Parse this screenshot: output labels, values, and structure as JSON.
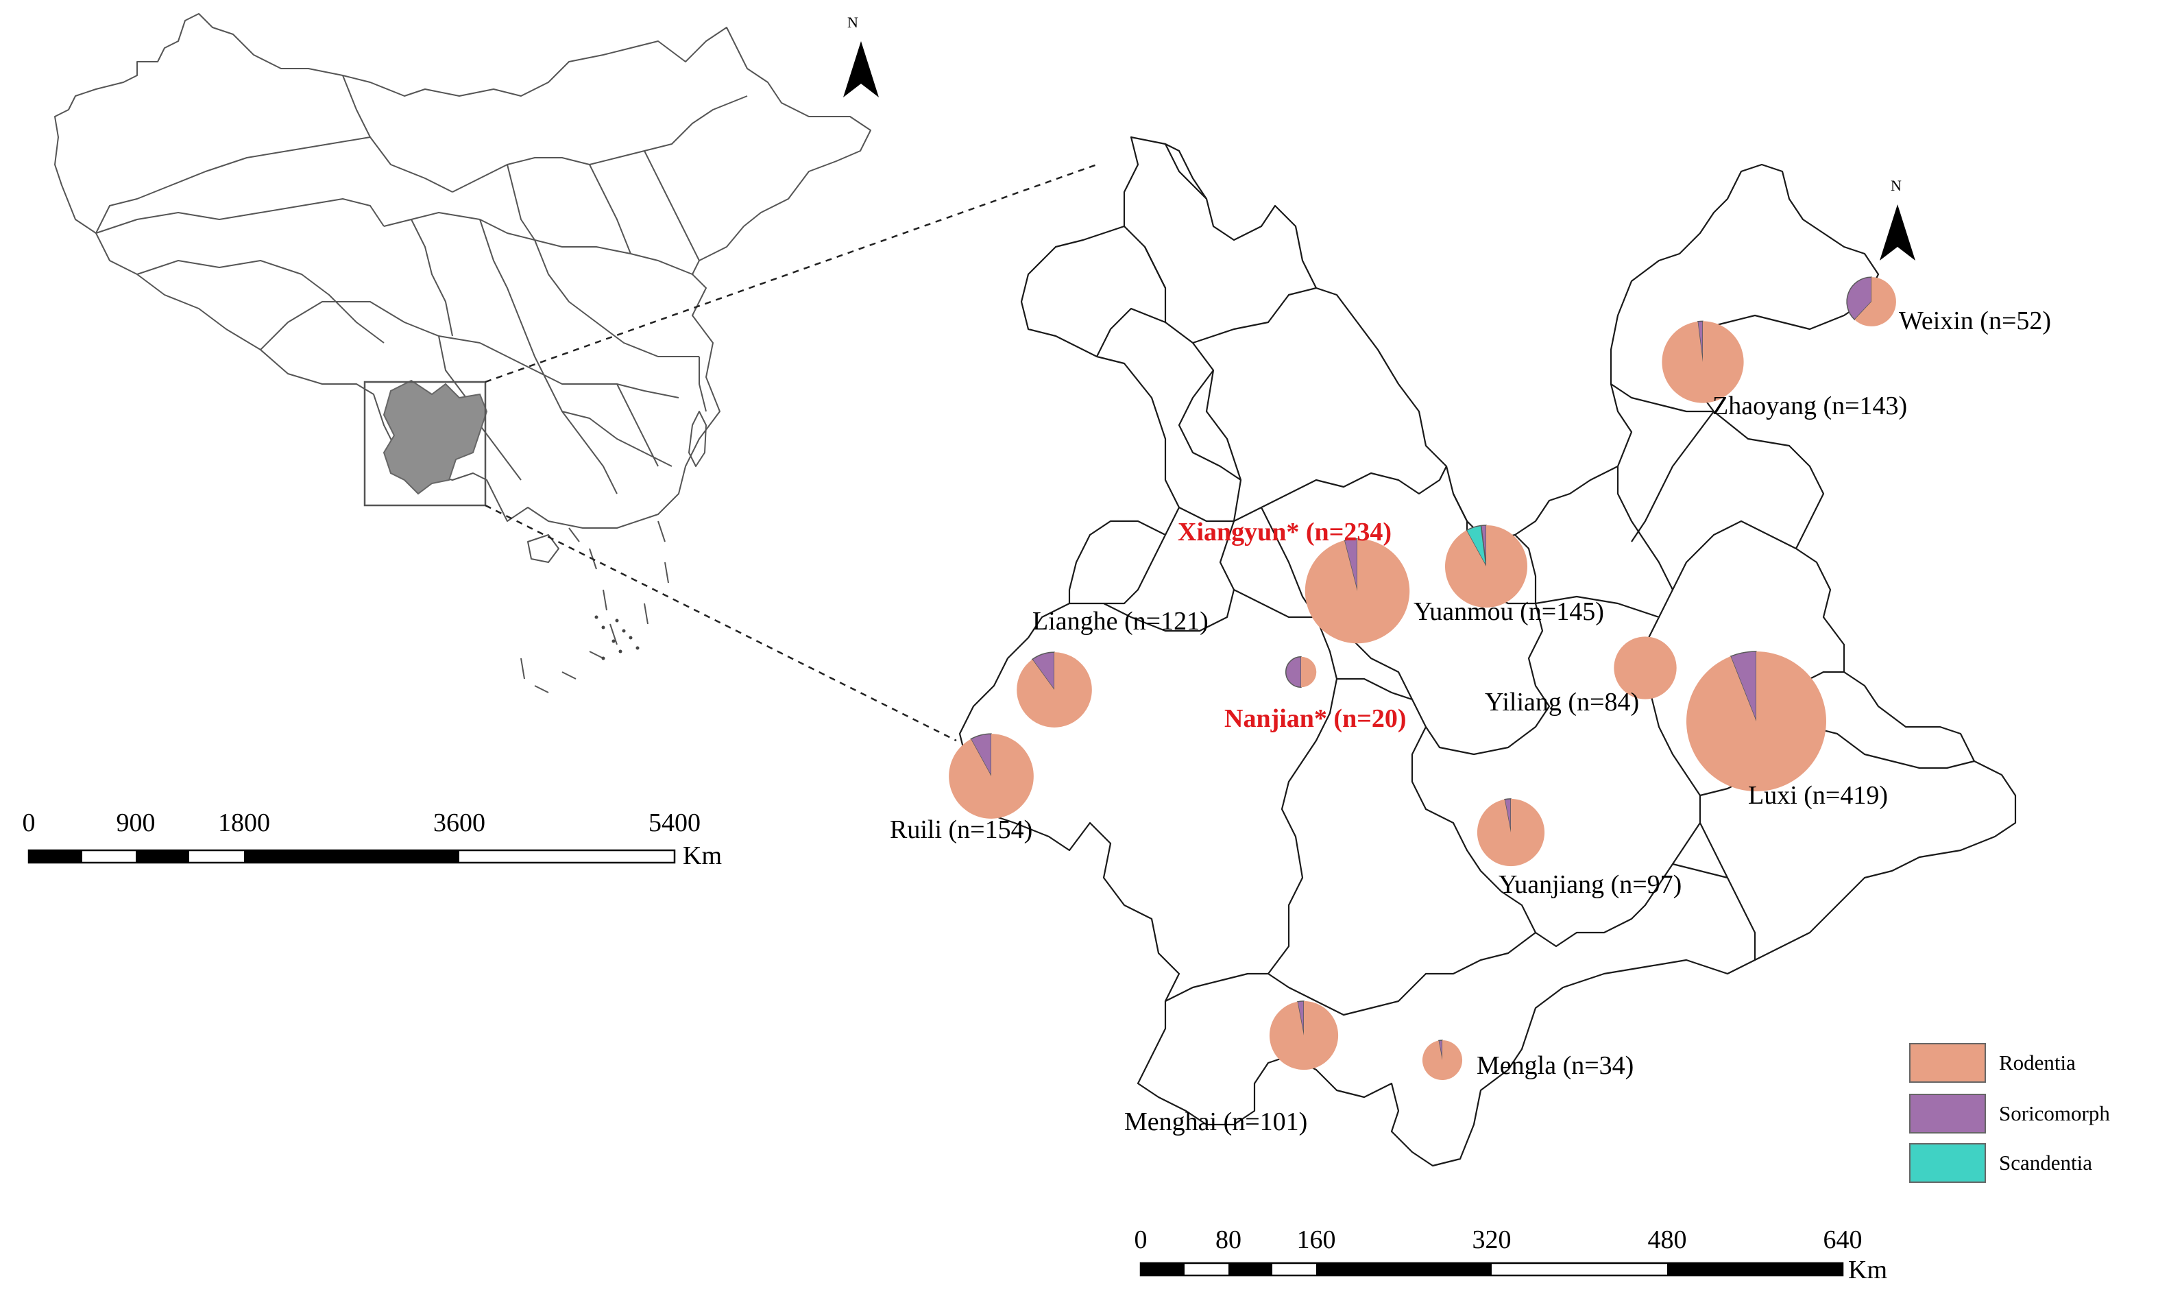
{
  "colors": {
    "Rodentia": "#E8A084",
    "Soricomorph": "#A070AC",
    "Scandentia": "#40D2C4"
  },
  "legend": {
    "items": [
      {
        "key": "Rodentia",
        "label": "Rodentia"
      },
      {
        "key": "Soricomorph",
        "label": "Soricomorph"
      },
      {
        "key": "Scandentia",
        "label": "Scandentia"
      }
    ]
  },
  "china_scale": {
    "ticks": [
      "0",
      "900",
      "1800",
      "3600",
      "5400"
    ],
    "unit": "Km"
  },
  "yunnan_scale": {
    "ticks": [
      "0",
      "80",
      "160",
      "320",
      "480",
      "640"
    ],
    "unit": "Km"
  },
  "north_arrows": [
    {
      "letter": "N"
    },
    {
      "letter": "N"
    }
  ],
  "sites": [
    {
      "label": "Weixin (n=52)",
      "n": 52,
      "highlight": false,
      "fractions": {
        "Rodentia": 0.62,
        "Soricomorph": 0.38,
        "Scandentia": 0.0
      }
    },
    {
      "label": "Zhaoyang (n=143)",
      "n": 143,
      "highlight": false,
      "fractions": {
        "Rodentia": 0.98,
        "Soricomorph": 0.02,
        "Scandentia": 0.0
      }
    },
    {
      "label": "Xiangyun* (n=234)",
      "n": 234,
      "highlight": true,
      "fractions": {
        "Rodentia": 0.96,
        "Soricomorph": 0.04,
        "Scandentia": 0.0
      }
    },
    {
      "label": "Yuanmou (n=145)",
      "n": 145,
      "highlight": false,
      "fractions": {
        "Rodentia": 0.92,
        "Soricomorph": 0.02,
        "Scandentia": 0.06
      }
    },
    {
      "label": "Lianghe (n=121)",
      "n": 121,
      "highlight": false,
      "fractions": {
        "Rodentia": 0.9,
        "Soricomorph": 0.1,
        "Scandentia": 0.0
      }
    },
    {
      "label": "Nanjian* (n=20)",
      "n": 20,
      "highlight": true,
      "fractions": {
        "Rodentia": 0.5,
        "Soricomorph": 0.5,
        "Scandentia": 0.0
      }
    },
    {
      "label": "Yiliang (n=84)",
      "n": 84,
      "highlight": false,
      "fractions": {
        "Rodentia": 1.0,
        "Soricomorph": 0.0,
        "Scandentia": 0.0
      }
    },
    {
      "label": "Luxi (n=419)",
      "n": 419,
      "highlight": false,
      "fractions": {
        "Rodentia": 0.94,
        "Soricomorph": 0.06,
        "Scandentia": 0.0
      }
    },
    {
      "label": "Ruili (n=154)",
      "n": 154,
      "highlight": false,
      "fractions": {
        "Rodentia": 0.92,
        "Soricomorph": 0.08,
        "Scandentia": 0.0
      }
    },
    {
      "label": "Yuanjiang (n=97)",
      "n": 97,
      "highlight": false,
      "fractions": {
        "Rodentia": 0.97,
        "Soricomorph": 0.03,
        "Scandentia": 0.0
      }
    },
    {
      "label": "Menghai (n=101)",
      "n": 101,
      "highlight": false,
      "fractions": {
        "Rodentia": 0.97,
        "Soricomorph": 0.03,
        "Scandentia": 0.0
      }
    },
    {
      "label": "Mengla (n=34)",
      "n": 34,
      "highlight": false,
      "fractions": {
        "Rodentia": 0.97,
        "Soricomorph": 0.03,
        "Scandentia": 0.0
      }
    }
  ]
}
